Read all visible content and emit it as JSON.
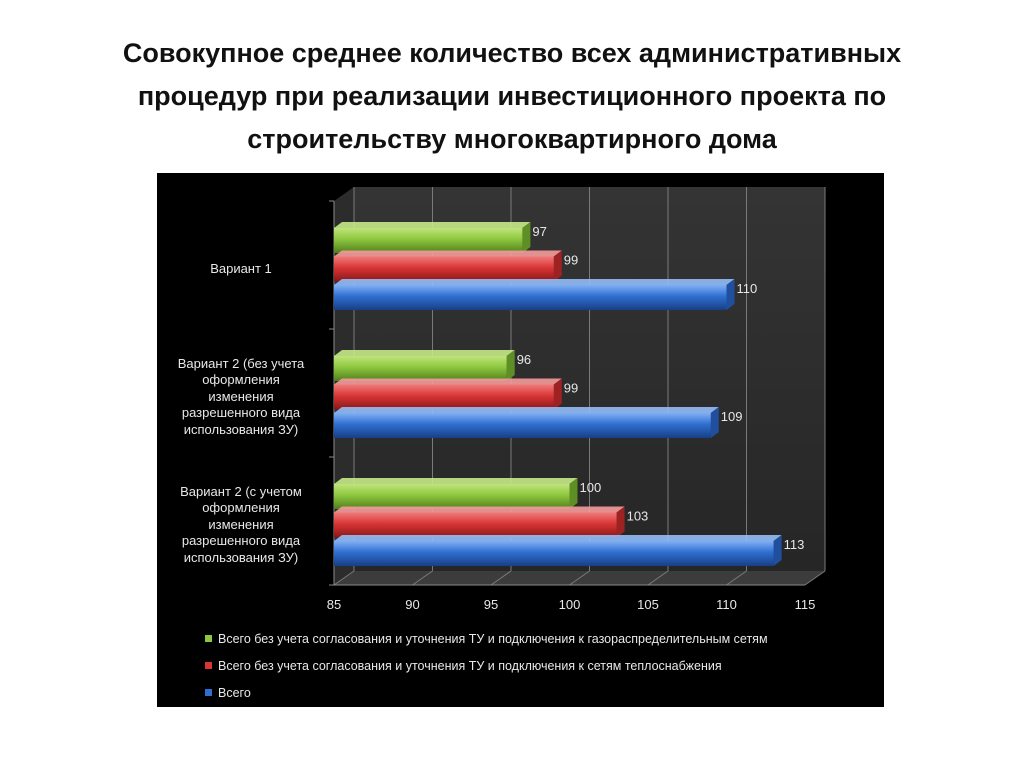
{
  "slide": {
    "title": "Совокупное среднее количество всех административных\nпроцедур при реализации инвестиционного проекта по\nстроительству многоквартирного дома"
  },
  "chart_data": {
    "type": "bar",
    "orientation": "horizontal",
    "style": "3d",
    "background": "#000000",
    "categories": [
      "Вариант 1",
      "Вариант 2 (без учета\nоформления\nизменения\nразрешенного вида\nиспользования ЗУ)",
      "Вариант 2 (с учетом\nоформления\nизменения\nразрешенного вида\nиспользования ЗУ)"
    ],
    "series": [
      {
        "name": "Всего без учета согласования и уточнения ТУ и подключения к газораспределительным сетям",
        "color": "#8ec63f",
        "values": [
          97,
          96,
          100
        ]
      },
      {
        "name": "Всего без учета согласования и уточнения ТУ и подключения к сетям теплоснабжения",
        "color": "#d93535",
        "values": [
          99,
          99,
          103
        ]
      },
      {
        "name": "Всего",
        "color": "#2f6fd1",
        "values": [
          110,
          109,
          113
        ]
      }
    ],
    "xlim": [
      85,
      115
    ],
    "xticks": [
      85,
      90,
      95,
      100,
      105,
      110,
      115
    ],
    "grid": true,
    "data_labels": true,
    "legend_position": "bottom"
  }
}
